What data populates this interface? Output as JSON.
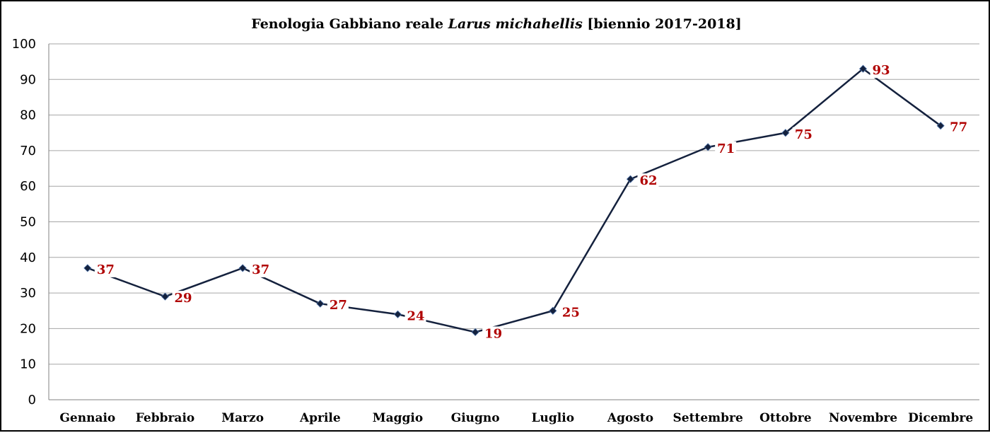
{
  "chart_data": {
    "type": "line",
    "title_parts": [
      {
        "text": "Fenologia Gabbiano reale ",
        "italic": false
      },
      {
        "text": "Larus michahellis",
        "italic": true
      },
      {
        "text": " [biennio 2017-2018]",
        "italic": false
      }
    ],
    "title": "Fenologia Gabbiano reale Larus michahellis [biennio 2017-2018]",
    "xlabel": "",
    "ylabel": "",
    "categories": [
      "Gennaio",
      "Febbraio",
      "Marzo",
      "Aprile",
      "Maggio",
      "Giugno",
      "Luglio",
      "Agosto",
      "Settembre",
      "Ottobre",
      "Novembre",
      "Dicembre"
    ],
    "series": [
      {
        "values": [
          37,
          29,
          37,
          27,
          24,
          19,
          25,
          62,
          71,
          75,
          93,
          77
        ]
      }
    ],
    "ylim": [
      0,
      100
    ],
    "yticks": [
      0,
      10,
      20,
      30,
      40,
      50,
      60,
      70,
      80,
      90,
      100
    ],
    "grid": true,
    "legend": "none",
    "data_labels": true,
    "colors": {
      "line": "#14213d",
      "marker": "#14213d",
      "label": "#b00000",
      "grid": "#a6a6a6",
      "axis": "#808080"
    }
  }
}
